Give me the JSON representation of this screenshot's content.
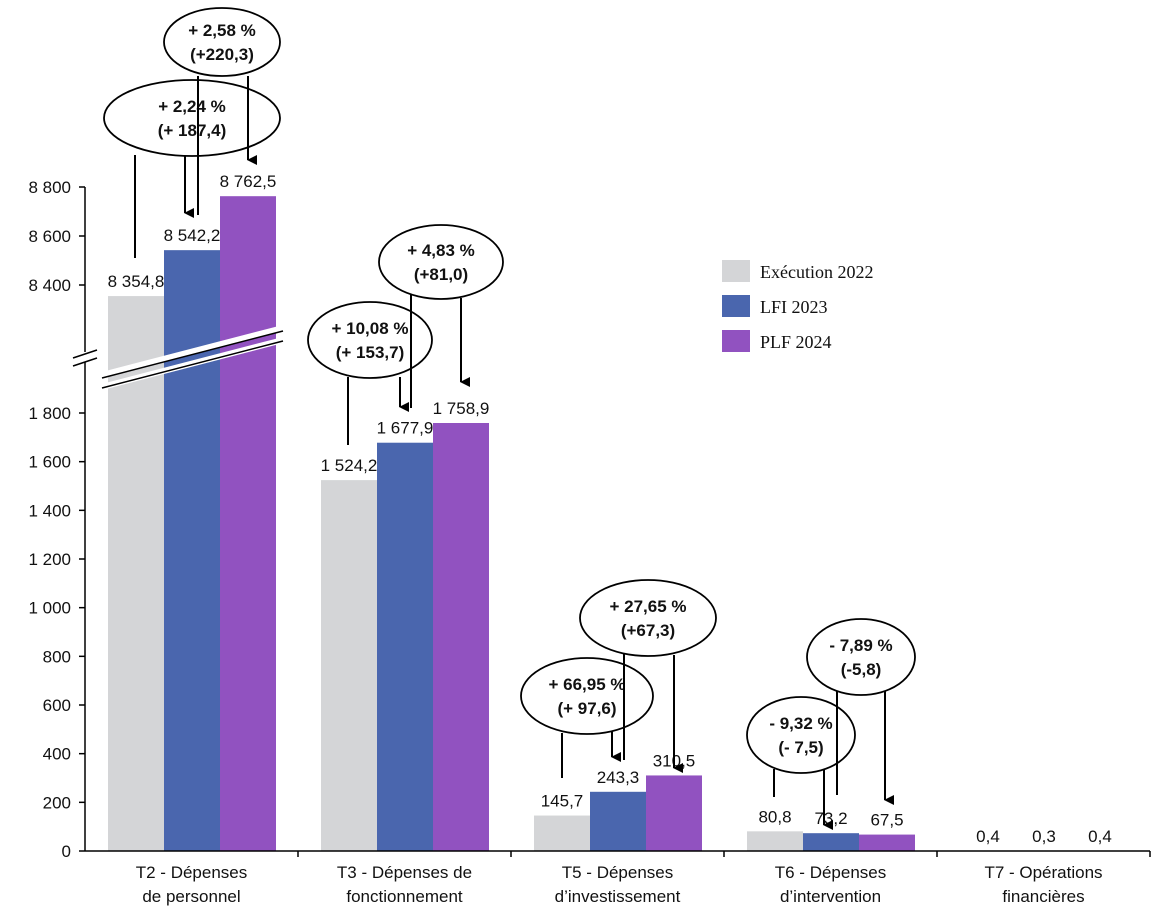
{
  "chart_data": {
    "type": "bar",
    "title": "",
    "xlabel": "",
    "ylabel": "",
    "axis_break": true,
    "ylim_lower": [
      0,
      1800
    ],
    "ylim_upper": [
      8400,
      8800
    ],
    "yticks_lower": [
      "0",
      "200",
      "400",
      "600",
      "800",
      "1 000",
      "1 200",
      "1 400",
      "1 600",
      "1 800"
    ],
    "yticks_upper": [
      "8 400",
      "8 600",
      "8 800"
    ],
    "grid": false,
    "legend_position": "right",
    "categories": [
      [
        "T2 - Dépenses",
        "de personnel"
      ],
      [
        "T3 - Dépenses de",
        "fonctionnement"
      ],
      [
        "T5 - Dépenses",
        "d’investissement"
      ],
      [
        "T6 - Dépenses",
        "d’intervention"
      ],
      [
        "T7 - Opérations",
        "financières"
      ]
    ],
    "series": [
      {
        "name": "Exécution 2022",
        "color": "#d4d5d7",
        "values": [
          8354.8,
          1524.2,
          145.7,
          80.8,
          0.4
        ],
        "labels": [
          "8 354,8",
          "1 524,2",
          "145,7",
          "80,8",
          "0,4"
        ]
      },
      {
        "name": "LFI 2023",
        "color": "#4a66ae",
        "values": [
          8542.2,
          1677.9,
          243.3,
          73.2,
          0.3
        ],
        "labels": [
          "8 542,2",
          "1 677,9",
          "243,3",
          "73,2",
          "0,3"
        ]
      },
      {
        "name": "PLF 2024",
        "color": "#9152c0",
        "values": [
          8762.5,
          1758.9,
          310.5,
          67.5,
          0.4
        ],
        "labels": [
          "8 762,5",
          "1 758,9",
          "310,5",
          "67,5",
          "0,4"
        ]
      }
    ],
    "annotations": [
      {
        "category": 0,
        "from": "Exécution 2022",
        "to": "LFI 2023",
        "line1": "+ 2,24 %",
        "line2": "(+ 187,4)"
      },
      {
        "category": 0,
        "from": "LFI 2023",
        "to": "PLF 2024",
        "line1": "+ 2,58 %",
        "line2": "(+220,3)"
      },
      {
        "category": 1,
        "from": "Exécution 2022",
        "to": "LFI 2023",
        "line1": "+ 10,08 %",
        "line2": "(+ 153,7)"
      },
      {
        "category": 1,
        "from": "LFI 2023",
        "to": "PLF 2024",
        "line1": "+ 4,83 %",
        "line2": "(+81,0)"
      },
      {
        "category": 2,
        "from": "Exécution 2022",
        "to": "LFI 2023",
        "line1": "+ 66,95 %",
        "line2": "(+ 97,6)"
      },
      {
        "category": 2,
        "from": "LFI 2023",
        "to": "PLF 2024",
        "line1": "+ 27,65 %",
        "line2": "(+67,3)"
      },
      {
        "category": 3,
        "from": "Exécution 2022",
        "to": "LFI 2023",
        "line1": "- 9,32 %",
        "line2": "(- 7,5)"
      },
      {
        "category": 3,
        "from": "LFI 2023",
        "to": "PLF 2024",
        "line1": "- 7,89 %",
        "line2": "(-5,8)"
      }
    ]
  }
}
